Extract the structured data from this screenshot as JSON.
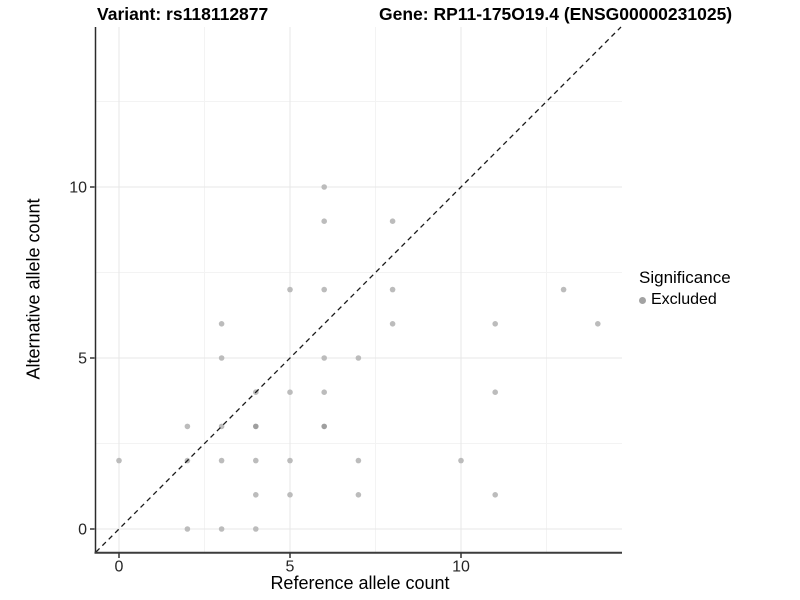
{
  "titles": {
    "left": "Variant: rs118112877",
    "right": "Gene: RP11-175O19.4 (ENSG00000231025)"
  },
  "axes": {
    "x": {
      "label": "Reference allele count",
      "tick_labels": [
        "0",
        "5",
        "10"
      ]
    },
    "y": {
      "label": "Alternative allele count",
      "tick_labels": [
        "0",
        "5",
        "10"
      ]
    }
  },
  "legend": {
    "title": "Significance",
    "items": [
      {
        "label": "Excluded",
        "color": "#a3a3a3"
      }
    ]
  },
  "colors": {
    "point": "#bcbcbc",
    "point_overplotted": "#9f9f9f",
    "major_grid": "#e7e7e7",
    "minor_grid": "#f3f3f3",
    "axis_line": "#3c3c3c",
    "identity_line": "#1a1a1a",
    "tick_text": "#262626"
  },
  "chart_data": {
    "type": "scatter",
    "title_left": "Variant: rs118112877",
    "title_right": "Gene: RP11-175O19.4 (ENSG00000231025)",
    "xlabel": "Reference allele count",
    "ylabel": "Alternative allele count",
    "xlim": [
      -0.7,
      14.7
    ],
    "ylim": [
      -0.67,
      14.68
    ],
    "x_ticks": [
      0,
      5,
      10
    ],
    "y_ticks": [
      0,
      5,
      10
    ],
    "x_minor_gridlines": [
      2.5,
      7.5,
      12.5
    ],
    "y_minor_gridlines": [
      2.5,
      7.5,
      12.5
    ],
    "grid": true,
    "legend_position": "right",
    "identity_line": {
      "slope": 1,
      "intercept": 0,
      "style": "dashed"
    },
    "series": [
      {
        "name": "Excluded",
        "color": "#bcbcbc",
        "points": [
          [
            0,
            2
          ],
          [
            2,
            0
          ],
          [
            2,
            2
          ],
          [
            2,
            3
          ],
          [
            3,
            0
          ],
          [
            3,
            2
          ],
          [
            3,
            3
          ],
          [
            3,
            5
          ],
          [
            3,
            6
          ],
          [
            4,
            0
          ],
          [
            4,
            1
          ],
          [
            4,
            2
          ],
          [
            4,
            3
          ],
          [
            4,
            4
          ],
          [
            5,
            1
          ],
          [
            5,
            2
          ],
          [
            5,
            4
          ],
          [
            5,
            7
          ],
          [
            6,
            3
          ],
          [
            6,
            4
          ],
          [
            6,
            5
          ],
          [
            6,
            7
          ],
          [
            6,
            9
          ],
          [
            6,
            10
          ],
          [
            7,
            1
          ],
          [
            7,
            2
          ],
          [
            7,
            5
          ],
          [
            8,
            6
          ],
          [
            8,
            7
          ],
          [
            8,
            9
          ],
          [
            10,
            2
          ],
          [
            11,
            1
          ],
          [
            11,
            4
          ],
          [
            11,
            6
          ],
          [
            13,
            7
          ],
          [
            14,
            6
          ]
        ],
        "overplotted_darker": [
          [
            4,
            3
          ],
          [
            6,
            3
          ]
        ]
      }
    ]
  }
}
